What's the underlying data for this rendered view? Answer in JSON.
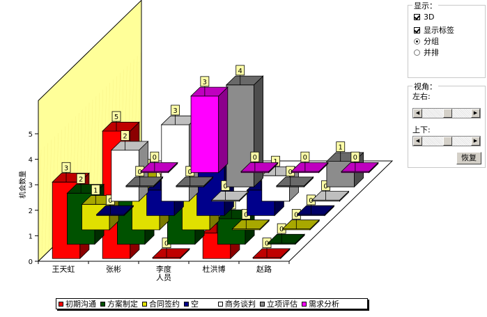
{
  "chart_data": {
    "type": "bar",
    "ylabel": "机会数量",
    "ylim": [
      0,
      5
    ],
    "y_ticks": [
      "0",
      "1",
      "2",
      "3",
      "4",
      "5"
    ],
    "categories": [
      [
        "王天虹"
      ],
      [
        "张彬"
      ],
      [
        "李度",
        "人员"
      ],
      [
        "杜洪博"
      ],
      [
        "赵路"
      ]
    ],
    "series": [
      {
        "name": "初期沟通",
        "color": "#ff0000",
        "values": [
          3,
          5,
          0,
          1,
          0
        ]
      },
      {
        "name": "方案制定",
        "color": "#005200",
        "values": [
          2,
          2,
          4,
          1,
          0
        ]
      },
      {
        "name": "合同签约",
        "color": "#e0e000",
        "values": [
          1,
          2,
          3,
          0,
          0
        ]
      },
      {
        "name": "空",
        "color": "#00008b",
        "values": [
          0,
          1,
          3,
          1,
          0
        ]
      },
      {
        "name": "商务谈判",
        "color": "#ffffff",
        "values": [
          2,
          3,
          0,
          1,
          0
        ]
      },
      {
        "name": "立项评估",
        "color": "#8c8c8c",
        "values": [
          0,
          0,
          4,
          0,
          1
        ]
      },
      {
        "name": "需求分析",
        "color": "#ff00ff",
        "values": [
          0,
          3,
          0,
          0,
          0
        ]
      }
    ],
    "grid": false,
    "legend": "bottom"
  },
  "panel": {
    "display_title": "显示：",
    "options": [
      {
        "label": "3D",
        "kind": "checkbox",
        "checked": true
      },
      {
        "label": "显示标签",
        "kind": "checkbox",
        "checked": true
      },
      {
        "label": "分组",
        "kind": "radio",
        "checked": true
      },
      {
        "label": "并排",
        "kind": "radio",
        "checked": false
      }
    ],
    "view_title": "视角：",
    "lr_label": "左右:",
    "ud_label": "上下:",
    "reset_label": "恢复"
  },
  "colors": {
    "wall": "#ffff99",
    "floor": "#ffffff"
  }
}
